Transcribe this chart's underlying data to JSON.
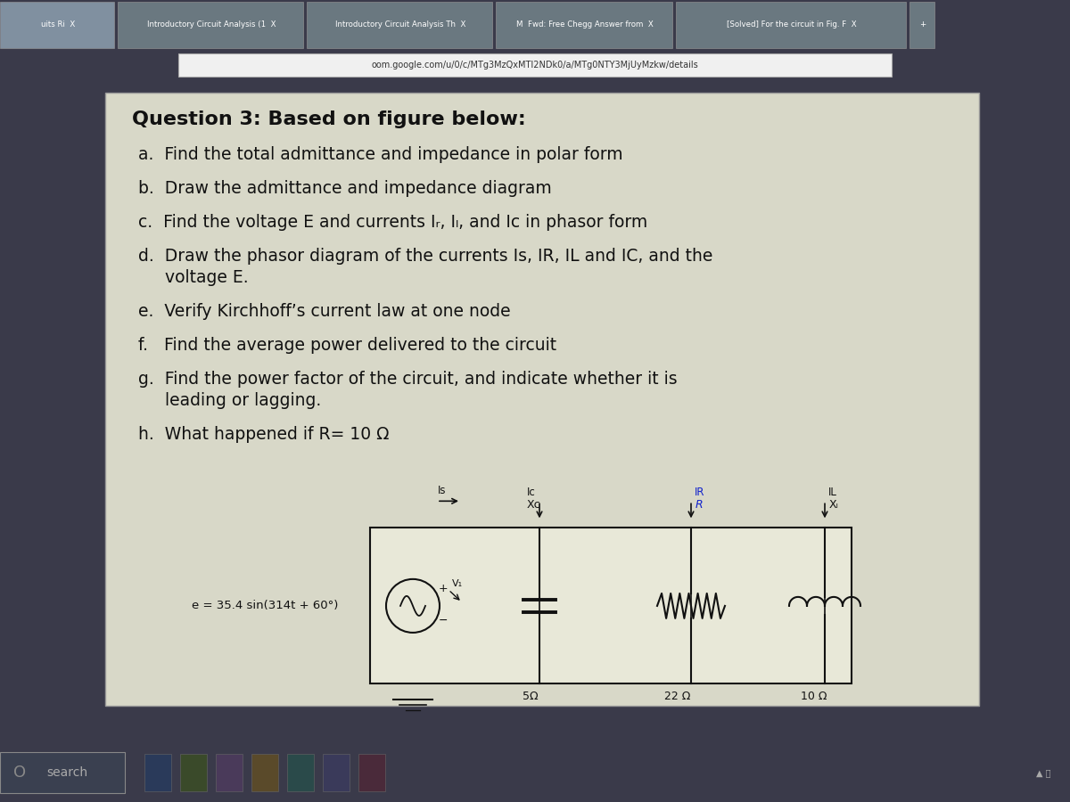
{
  "browser_bg": "#3a3a4a",
  "tab_bar_bg": "#5a6070",
  "tab_texts": [
    "uits Ri  X",
    "Introductory Circuit Analysis (1  X",
    "Introductory Circuit Analysis Th  X",
    "M  Fwd: Free Chegg Answer from  X",
    "[Solved] For the circuit in Fig. F  X",
    "+"
  ],
  "url_bar_bg": "#6a7a50",
  "url_bar_text": "oom.google.com/u/0/c/MTg3MzQxMTI2NDk0/a/MTg0NTY3MjUyMzkw/details",
  "content_bg": "#b0b8a0",
  "panel_bg": "#d8d8c8",
  "title": "Question 3: Based on figure below:",
  "items": [
    "a.  Find the total admittance and impedance in polar form",
    "b.  Draw the admittance and impedance diagram",
    "c.  Find the voltage E and currents Iᵣ, Iₗ, and Iᴄ in phasor form",
    "d.  Draw the phasor diagram of the currents Is, IR, IL and IC, and the",
    "     voltage E.",
    "e.  Verify Kirchhoff’s current law at one node",
    "f.   Find the average power delivered to the circuit",
    "g.  Find the power factor of the circuit, and indicate whether it is",
    "     leading or lagging.",
    "h.  What happened if R= 10 Ω"
  ],
  "circuit_equation": "e = 35.4 sin(314t + 60°)",
  "xc_label": "Xᴄ",
  "xc_val": "5Ω",
  "r_label": "R",
  "r_val": "22 Ω",
  "xl_label": "Xₗ",
  "xl_val": "10 Ω",
  "is_label": "Is",
  "ic_label": "Ic",
  "ir_label": "IR",
  "il_label": "IL",
  "v1_label": "V₁",
  "taskbar_bg": "#2a3040",
  "search_text": "search",
  "panel_text_color": "#111111"
}
